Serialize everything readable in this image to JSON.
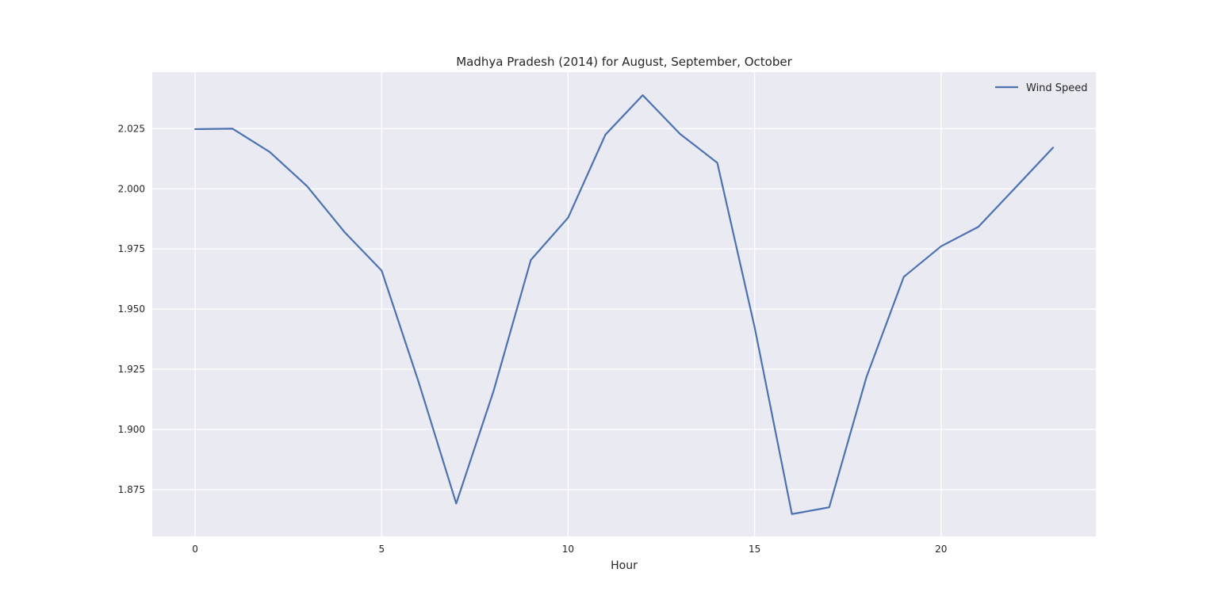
{
  "chart_data": {
    "type": "line",
    "title": "Madhya Pradesh (2014) for August, September, October",
    "xlabel": "Hour",
    "ylabel": "",
    "xlim": [
      -1.15,
      24.15
    ],
    "ylim": [
      1.8555,
      2.0485
    ],
    "x_ticks": [
      0,
      5,
      10,
      15,
      20
    ],
    "x_tick_labels": [
      "0",
      "5",
      "10",
      "15",
      "20"
    ],
    "y_ticks": [
      1.875,
      1.9,
      1.925,
      1.95,
      1.975,
      2.0,
      2.025
    ],
    "y_tick_labels": [
      "1.875",
      "1.900",
      "1.925",
      "1.950",
      "1.975",
      "2.000",
      "2.025"
    ],
    "grid": true,
    "legend_position": "top-right",
    "series": [
      {
        "name": "Wind Speed",
        "color": "#4c72b0",
        "x": [
          0,
          1,
          2,
          3,
          4,
          5,
          6,
          7,
          8,
          9,
          10,
          11,
          12,
          13,
          14,
          15,
          16,
          17,
          18,
          19,
          20,
          21,
          22,
          23
        ],
        "values": [
          2.0248,
          2.025,
          2.0153,
          2.0011,
          1.9821,
          1.966,
          1.9193,
          1.8692,
          1.9159,
          1.9704,
          1.988,
          2.0225,
          2.0389,
          2.0228,
          2.0108,
          1.9425,
          1.8648,
          1.8676,
          1.9218,
          1.9634,
          1.9761,
          1.9842,
          2.0006,
          2.0171
        ]
      }
    ]
  }
}
